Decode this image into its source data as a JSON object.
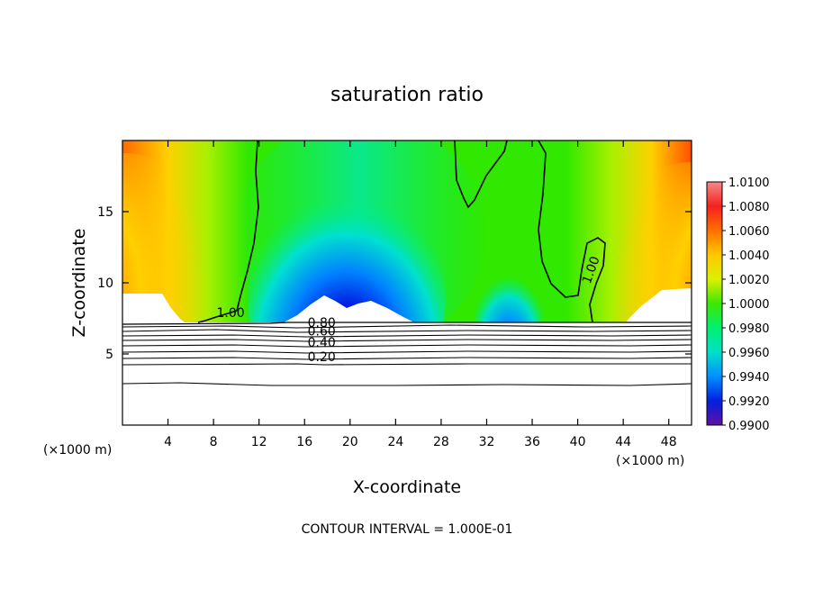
{
  "chart_data": {
    "type": "heatmap",
    "title": "saturation ratio",
    "xlabel": "X-coordinate",
    "ylabel": "Z-coordinate",
    "x_unit": "(×1000 m)",
    "xlim": [
      0,
      50
    ],
    "ylim": [
      0,
      20
    ],
    "x_ticks": [
      4,
      8,
      12,
      16,
      20,
      24,
      28,
      32,
      36,
      40,
      44,
      48
    ],
    "y_ticks": [
      5,
      10,
      15
    ],
    "colorbar": {
      "min": 0.99,
      "max": 1.01,
      "tick_labels": [
        "1.0100",
        "1.0080",
        "1.0060",
        "1.0040",
        "1.0020",
        "1.0000",
        "0.9980",
        "0.9960",
        "0.9940",
        "0.9920",
        "0.9900"
      ],
      "colors": [
        "#f58a8a",
        "#f52020",
        "#ff7000",
        "#ffc800",
        "#dcf000",
        "#3ce800",
        "#00f070",
        "#00e0c8",
        "#0090ff",
        "#0020e0",
        "#6010a0"
      ]
    },
    "contour_labels": [
      {
        "text": "1.00",
        "x": 9.5,
        "z": 7.6
      },
      {
        "text": "1.00",
        "x": 41.5,
        "z": 10.8
      },
      {
        "text": "0.80",
        "x": 17.5,
        "z": 6.9
      },
      {
        "text": "0.60",
        "x": 17.5,
        "z": 6.3
      },
      {
        "text": "0.40",
        "x": 17.5,
        "z": 5.5
      },
      {
        "text": "0.20",
        "x": 17.5,
        "z": 4.5
      }
    ],
    "footer": "CONTOUR INTERVAL = 1.000E-01"
  }
}
